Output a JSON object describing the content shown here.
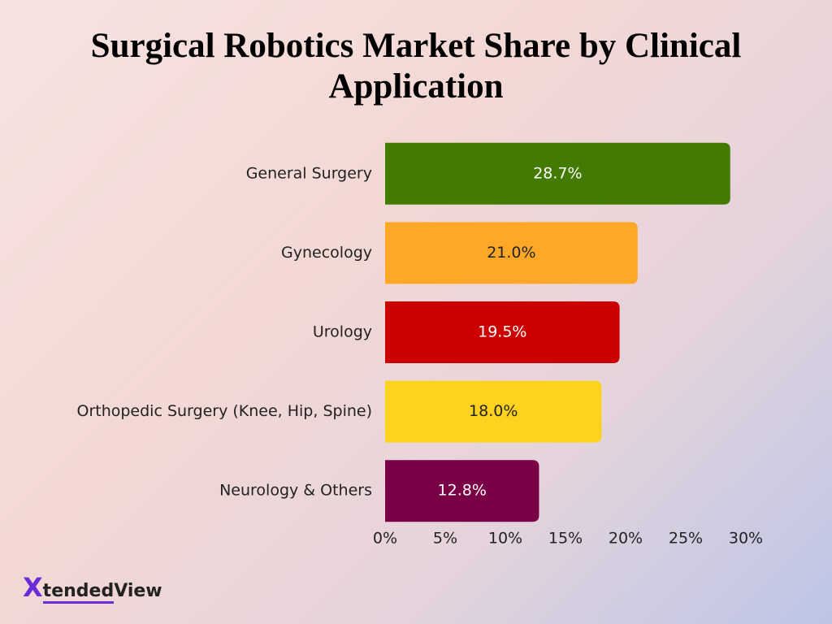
{
  "chart_data": {
    "type": "bar",
    "orientation": "horizontal",
    "title": "Surgical Robotics Market Share by Clinical Application",
    "categories": [
      "General Surgery",
      "Gynecology",
      "Urology",
      "Orthopedic Surgery (Knee, Hip, Spine)",
      "Neurology & Others"
    ],
    "values": [
      28.7,
      21.0,
      19.5,
      18.0,
      12.8
    ],
    "value_labels": [
      "28.7%",
      "21.0%",
      "19.5%",
      "18.0%",
      "12.8%"
    ],
    "colors": [
      "#437a00",
      "#ffa726",
      "#cc0000",
      "#ffd21f",
      "#7a0045"
    ],
    "xlim": [
      0,
      30
    ],
    "xticks": [
      {
        "value": 0,
        "label": "0%"
      },
      {
        "value": 5,
        "label": "5%"
      },
      {
        "value": 10,
        "label": "10%"
      },
      {
        "value": 15,
        "label": "15%"
      },
      {
        "value": 20,
        "label": "20%"
      },
      {
        "value": 25,
        "label": "25%"
      },
      {
        "value": 30,
        "label": "30%"
      }
    ],
    "grid": false
  },
  "brand": {
    "mark": "X",
    "text": "tended",
    "accent": "View"
  }
}
